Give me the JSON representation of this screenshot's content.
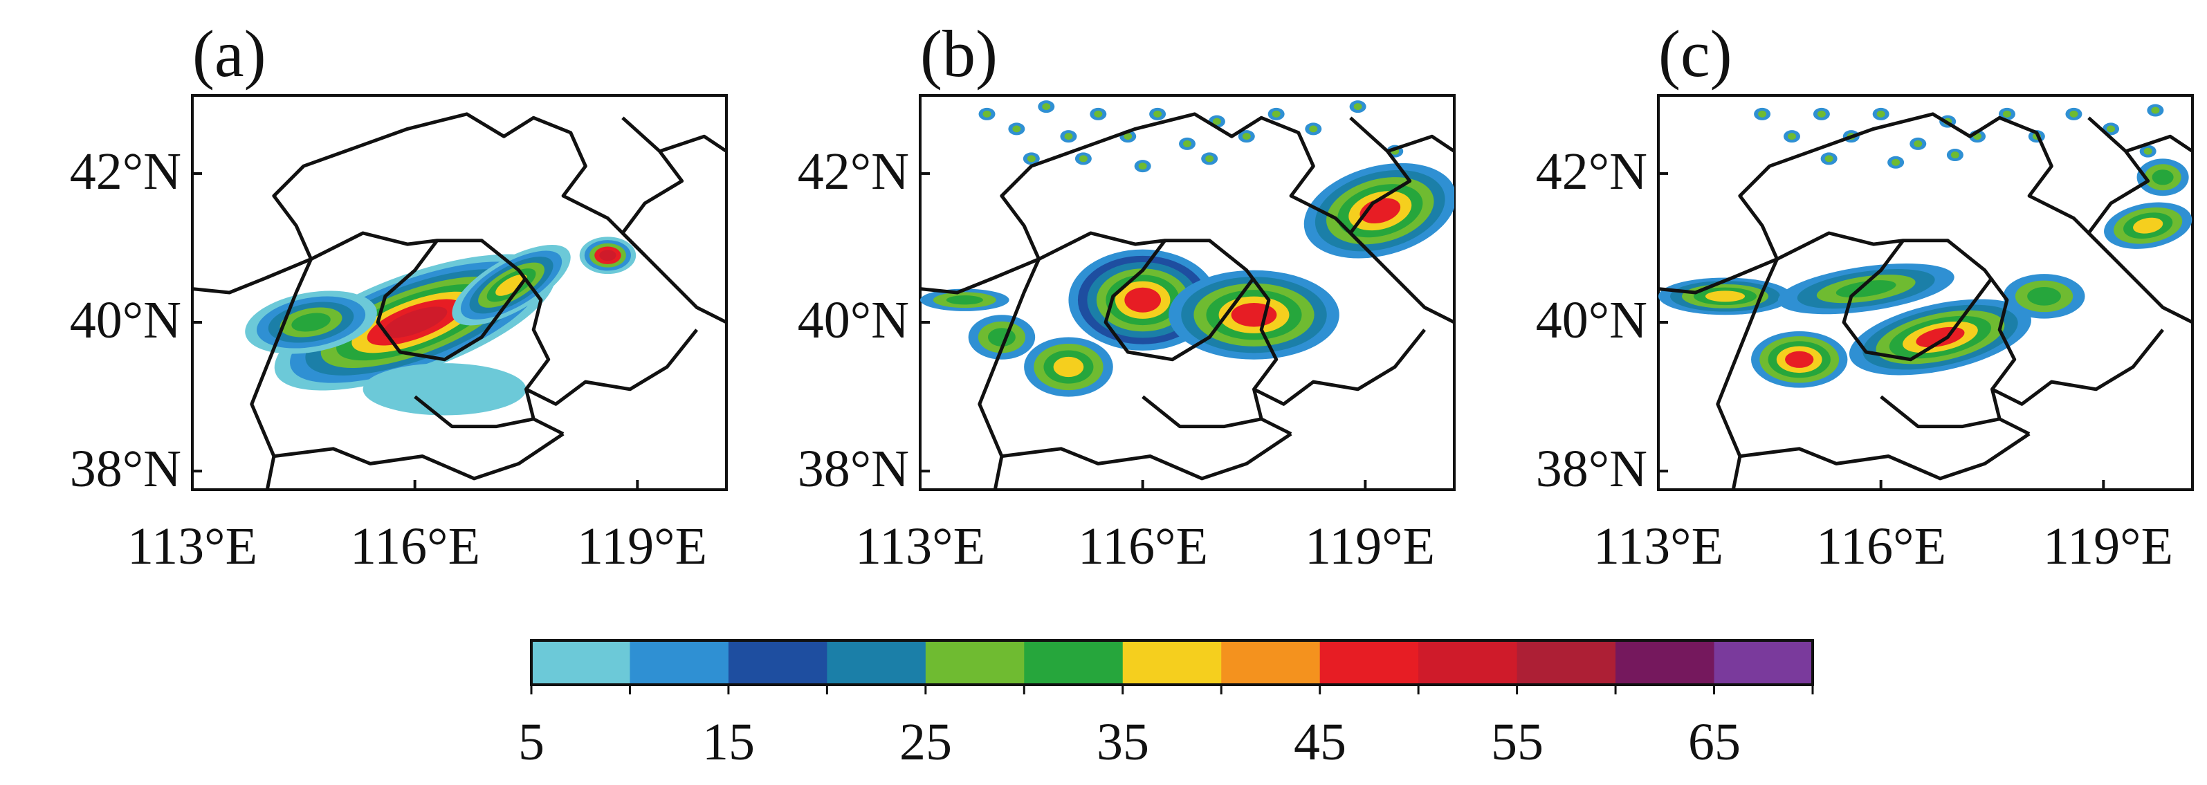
{
  "panels": [
    {
      "label": "(a)",
      "lat_ticks": [
        "42°N",
        "40°N",
        "38°N"
      ],
      "lon_ticks": [
        "113°E",
        "116°E",
        "119°E"
      ],
      "blobs": [
        {
          "lon": 116.0,
          "lat": 40.0,
          "rlon": 2.0,
          "rlat": 0.65,
          "rot": -20,
          "levels": [
            0,
            1,
            3,
            4,
            5,
            6,
            8,
            9
          ]
        },
        {
          "lon": 114.6,
          "lat": 40.0,
          "rlon": 0.9,
          "rlat": 0.4,
          "rot": -10,
          "levels": [
            0,
            1,
            3,
            4,
            5
          ]
        },
        {
          "lon": 117.3,
          "lat": 40.5,
          "rlon": 0.9,
          "rlat": 0.35,
          "rot": -30,
          "levels": [
            0,
            1,
            3,
            4,
            5,
            6
          ]
        },
        {
          "lon": 118.6,
          "lat": 40.9,
          "rlon": 0.38,
          "rlat": 0.25,
          "rot": 0,
          "levels": [
            0,
            1,
            4,
            8,
            9
          ]
        },
        {
          "lon": 116.4,
          "lat": 39.1,
          "rlon": 1.1,
          "rlat": 0.35,
          "rot": 0,
          "levels": [
            0
          ]
        }
      ]
    },
    {
      "label": "(b)",
      "lat_ticks": [
        "42°N",
        "40°N",
        "38°N"
      ],
      "lon_ticks": [
        "113°E",
        "116°E",
        "119°E"
      ],
      "blobs": [
        {
          "lon": 116.0,
          "lat": 40.3,
          "rlon": 1.0,
          "rlat": 0.68,
          "rot": 0,
          "levels": [
            1,
            2,
            3,
            4,
            5,
            6,
            8
          ]
        },
        {
          "lon": 117.5,
          "lat": 40.1,
          "rlon": 1.15,
          "rlat": 0.6,
          "rot": 0,
          "levels": [
            1,
            3,
            4,
            5,
            6,
            8
          ]
        },
        {
          "lon": 115.0,
          "lat": 39.4,
          "rlon": 0.6,
          "rlat": 0.4,
          "rot": 0,
          "levels": [
            1,
            4,
            5,
            6
          ]
        },
        {
          "lon": 114.1,
          "lat": 39.8,
          "rlon": 0.45,
          "rlat": 0.3,
          "rot": 0,
          "levels": [
            1,
            4,
            5
          ]
        },
        {
          "lon": 113.6,
          "lat": 40.3,
          "rlon": 0.6,
          "rlat": 0.15,
          "rot": 0,
          "levels": [
            1,
            4,
            5
          ]
        },
        {
          "lon": 119.2,
          "lat": 41.5,
          "rlon": 1.05,
          "rlat": 0.6,
          "rot": -15,
          "levels": [
            1,
            3,
            4,
            5,
            6,
            8
          ]
        }
      ],
      "speckles": [
        [
          113.9,
          42.8
        ],
        [
          114.3,
          42.6
        ],
        [
          114.7,
          42.9
        ],
        [
          115.0,
          42.5
        ],
        [
          115.4,
          42.8
        ],
        [
          115.8,
          42.5
        ],
        [
          116.2,
          42.8
        ],
        [
          116.6,
          42.4
        ],
        [
          117.0,
          42.7
        ],
        [
          117.4,
          42.5
        ],
        [
          117.8,
          42.8
        ],
        [
          118.3,
          42.6
        ],
        [
          118.9,
          42.9
        ],
        [
          114.5,
          42.2
        ],
        [
          115.2,
          42.2
        ],
        [
          116.0,
          42.1
        ],
        [
          116.9,
          42.2
        ],
        [
          119.4,
          42.3
        ]
      ]
    },
    {
      "label": "(c)",
      "lat_ticks": [
        "42°N",
        "40°N",
        "38°N"
      ],
      "lon_ticks": [
        "113°E",
        "116°E",
        "119°E"
      ],
      "blobs": [
        {
          "lon": 113.9,
          "lat": 40.35,
          "rlon": 0.9,
          "rlat": 0.25,
          "rot": 0,
          "levels": [
            1,
            3,
            4,
            5,
            6
          ]
        },
        {
          "lon": 115.8,
          "lat": 40.45,
          "rlon": 1.2,
          "rlat": 0.3,
          "rot": -8,
          "levels": [
            1,
            3,
            4,
            5
          ]
        },
        {
          "lon": 114.9,
          "lat": 39.5,
          "rlon": 0.65,
          "rlat": 0.38,
          "rot": 0,
          "levels": [
            1,
            4,
            5,
            6,
            8
          ]
        },
        {
          "lon": 116.8,
          "lat": 39.8,
          "rlon": 1.25,
          "rlat": 0.45,
          "rot": -12,
          "levels": [
            1,
            3,
            4,
            5,
            6,
            8
          ]
        },
        {
          "lon": 118.2,
          "lat": 40.35,
          "rlon": 0.55,
          "rlat": 0.3,
          "rot": 0,
          "levels": [
            1,
            4,
            5
          ]
        },
        {
          "lon": 119.6,
          "lat": 41.3,
          "rlon": 0.6,
          "rlat": 0.3,
          "rot": -10,
          "levels": [
            1,
            4,
            5,
            6
          ]
        },
        {
          "lon": 119.8,
          "lat": 41.95,
          "rlon": 0.35,
          "rlat": 0.25,
          "rot": 0,
          "levels": [
            1,
            4,
            5
          ]
        }
      ],
      "speckles": [
        [
          114.4,
          42.8
        ],
        [
          114.8,
          42.5
        ],
        [
          115.2,
          42.8
        ],
        [
          115.6,
          42.5
        ],
        [
          116.0,
          42.8
        ],
        [
          116.5,
          42.4
        ],
        [
          116.9,
          42.7
        ],
        [
          117.3,
          42.5
        ],
        [
          117.7,
          42.8
        ],
        [
          118.1,
          42.5
        ],
        [
          118.6,
          42.8
        ],
        [
          119.1,
          42.6
        ],
        [
          119.7,
          42.85
        ],
        [
          115.3,
          42.2
        ],
        [
          116.2,
          42.15
        ],
        [
          117.0,
          42.25
        ],
        [
          119.6,
          42.3
        ]
      ]
    }
  ],
  "colorbar": {
    "colors": [
      "#6cc9d8",
      "#2f90d3",
      "#1e4ea0",
      "#1b7fa8",
      "#6fbb31",
      "#26a63c",
      "#f5cf1e",
      "#f4921e",
      "#e71d24",
      "#cf1b2a",
      "#ad1f35",
      "#75185d",
      "#7a3a9c"
    ],
    "tick_labels": [
      "5",
      "15",
      "25",
      "35",
      "45",
      "55",
      "65"
    ]
  }
}
